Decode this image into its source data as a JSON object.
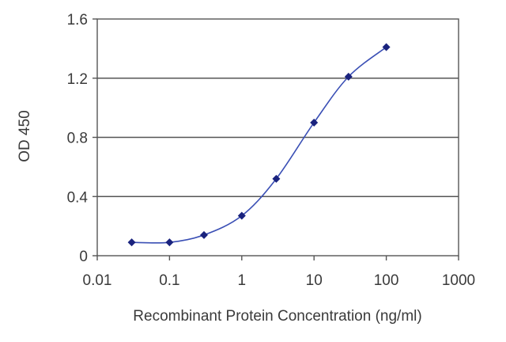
{
  "chart_data": {
    "type": "line",
    "title": "",
    "xlabel": "Recombinant Protein Concentration (ng/ml)",
    "ylabel": "OD 450",
    "x_scale": "log",
    "xlim": [
      0.01,
      1000
    ],
    "ylim": [
      0,
      1.6
    ],
    "x_ticks": [
      "0.01",
      "0.1",
      "1",
      "10",
      "100",
      "1000"
    ],
    "y_ticks": [
      "0",
      "0.4",
      "0.8",
      "1.2",
      "1.6"
    ],
    "grid": "horizontal",
    "series": [
      {
        "x": [
          0.03,
          0.1,
          0.3,
          1,
          3,
          10,
          30,
          100
        ],
        "y": [
          0.09,
          0.09,
          0.14,
          0.27,
          0.52,
          0.9,
          1.21,
          1.41
        ]
      }
    ],
    "colors": {
      "line": "#3a4fb5",
      "marker": "#1a237e",
      "grid": "#555555",
      "axis": "#555555"
    }
  }
}
